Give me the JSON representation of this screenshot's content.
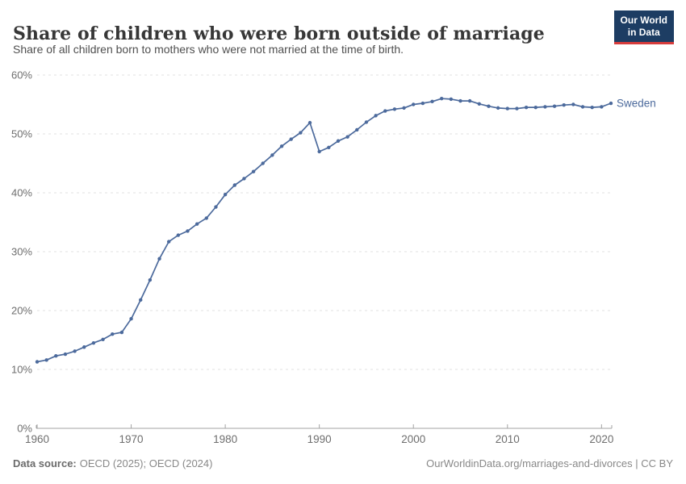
{
  "header": {
    "title": "Share of children who were born outside of marriage",
    "subtitle": "Share of all children born to mothers who were not married at the time of birth.",
    "logo": {
      "line1": "Our World",
      "line2": "in Data"
    }
  },
  "chart_data": {
    "type": "line",
    "title": "Share of children who were born outside of marriage",
    "entity_label": "Sweden",
    "unit": "%",
    "x": [
      1960,
      1961,
      1962,
      1963,
      1964,
      1965,
      1966,
      1967,
      1968,
      1969,
      1970,
      1971,
      1972,
      1973,
      1974,
      1975,
      1976,
      1977,
      1978,
      1979,
      1980,
      1981,
      1982,
      1983,
      1984,
      1985,
      1986,
      1987,
      1988,
      1989,
      1990,
      1991,
      1992,
      1993,
      1994,
      1995,
      1996,
      1997,
      1998,
      1999,
      2000,
      2001,
      2002,
      2003,
      2004,
      2005,
      2006,
      2007,
      2008,
      2009,
      2010,
      2011,
      2012,
      2013,
      2014,
      2015,
      2016,
      2017,
      2018,
      2019,
      2020,
      2021
    ],
    "series": [
      {
        "name": "Sweden",
        "values": [
          11.3,
          11.6,
          12.3,
          12.6,
          13.1,
          13.8,
          14.5,
          15.1,
          16.0,
          16.3,
          18.6,
          21.8,
          25.2,
          28.8,
          31.7,
          32.8,
          33.5,
          34.7,
          35.7,
          37.6,
          39.7,
          41.3,
          42.4,
          43.6,
          45.0,
          46.4,
          47.9,
          49.1,
          50.2,
          51.9,
          47.0,
          47.7,
          48.8,
          49.5,
          50.7,
          52.0,
          53.1,
          53.9,
          54.2,
          54.4,
          55.0,
          55.2,
          55.5,
          56.0,
          55.9,
          55.6,
          55.6,
          55.1,
          54.7,
          54.4,
          54.3,
          54.3,
          54.5,
          54.5,
          54.6,
          54.7,
          54.9,
          55.0,
          54.6,
          54.5,
          54.6,
          55.2
        ]
      }
    ],
    "xlim": [
      1960,
      2021
    ],
    "ylim": [
      0,
      60
    ],
    "yticks": [
      0,
      10,
      20,
      30,
      40,
      50,
      60
    ],
    "ytick_suffix": "%",
    "xticks": [
      1960,
      1970,
      1980,
      1990,
      2000,
      2010,
      2020
    ],
    "grid": true,
    "legend_position": "end-of-line",
    "line_color": "#4c6a9c",
    "grid_color": "#e0e0e0",
    "axis_color": "#a3a3a3",
    "tick_label_color": "#6e6e6e"
  },
  "footer": {
    "source_label": "Data source:",
    "source_value": "OECD (2025); OECD (2024)",
    "link": "OurWorldinData.org/marriages-and-divorces | CC BY"
  }
}
